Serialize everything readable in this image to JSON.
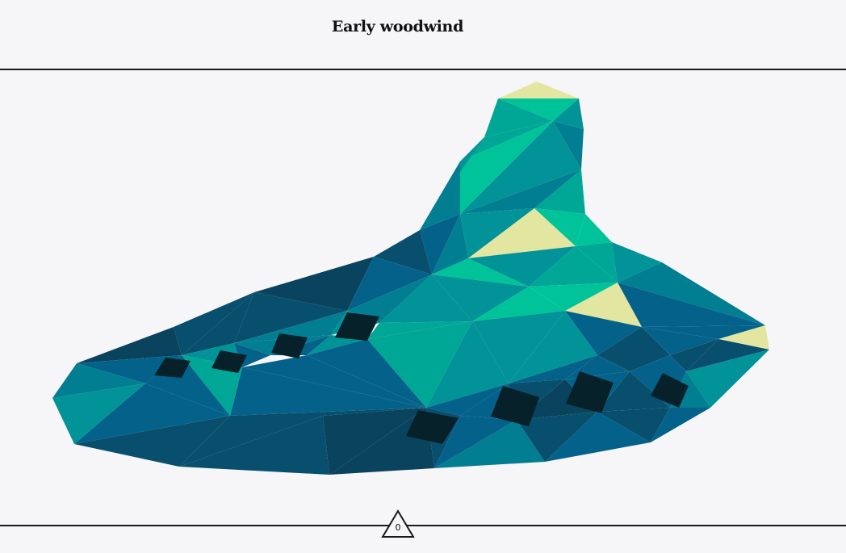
{
  "header": {
    "title": "Early woodwind"
  },
  "footer": {
    "counter_value": "0"
  },
  "palette": {
    "teal_light": "#00c39a",
    "teal_mid": "#00a796",
    "teal": "#019398",
    "teal_dark": "#017e92",
    "blue": "#04628a",
    "navy": "#084f6d",
    "navy_dark": "#0a435d",
    "hole": "#06212a",
    "accent": "#e3e6a1"
  }
}
